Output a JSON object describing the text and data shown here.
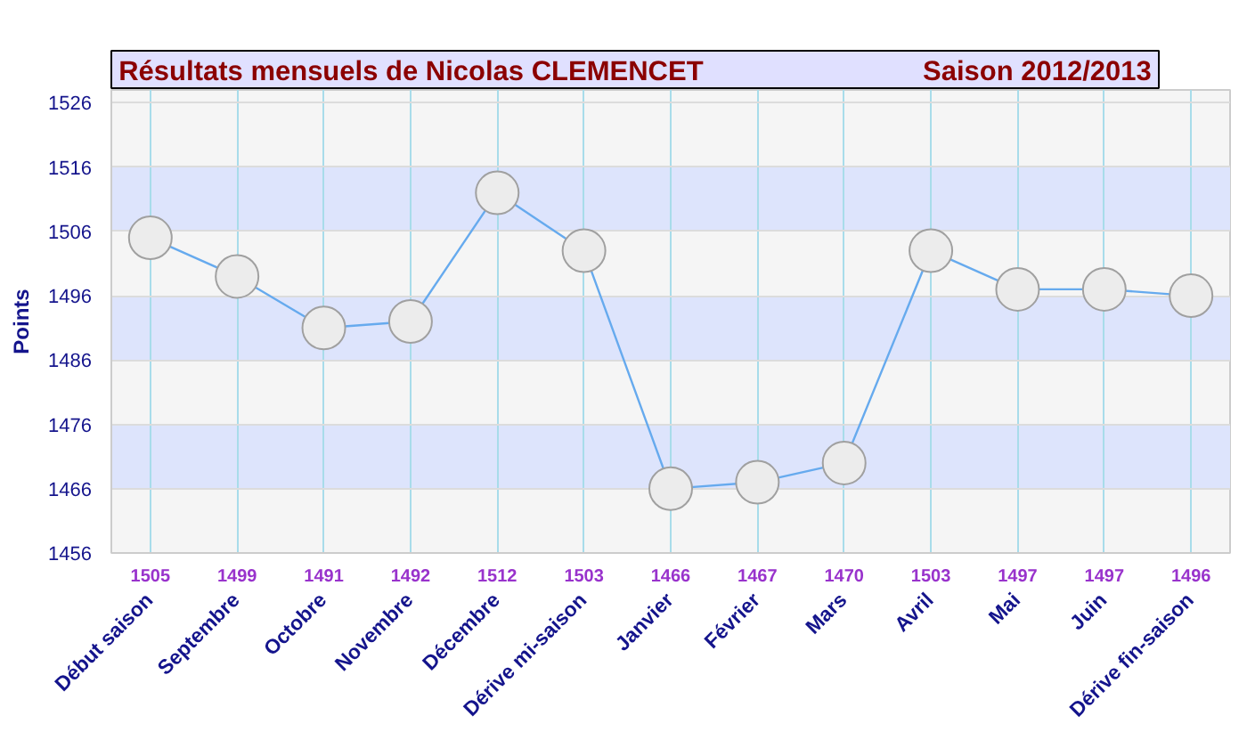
{
  "chart_data": {
    "type": "line",
    "title": "Résultats mensuels de  Nicolas CLEMENCET",
    "subtitle": "Saison 2012/2013",
    "ylabel": "Points",
    "categories": [
      "Début saison",
      "Septembre",
      "Octobre",
      "Novembre",
      "Décembre",
      "Dérive mi-saison",
      "Janvier",
      "Février",
      "Mars",
      "Avril",
      "Mai",
      "Juin",
      "Dérive fin-saison"
    ],
    "series": [
      {
        "color": "#66aaee",
        "values": [
          1505,
          1499,
          1491,
          1492,
          1512,
          1503,
          1466,
          1467,
          1470,
          1503,
          1497,
          1497,
          1496
        ]
      }
    ],
    "ylim": [
      1456,
      1528
    ],
    "yticks": [
      1456,
      1466,
      1476,
      1486,
      1496,
      1506,
      1516,
      1526
    ],
    "bands": [
      {
        "axis": "y",
        "from": 1466,
        "to": 1476,
        "color": "#dde4fc"
      },
      {
        "axis": "y",
        "from": 1486,
        "to": 1496,
        "color": "#dde4fc"
      },
      {
        "axis": "y",
        "from": 1506,
        "to": 1516,
        "color": "#dde4fc"
      }
    ],
    "data_labels": true,
    "grid": true,
    "marker": "circle",
    "line_style": "solid"
  }
}
